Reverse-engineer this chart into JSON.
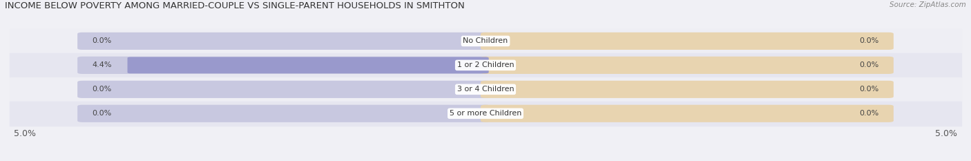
{
  "title": "INCOME BELOW POVERTY AMONG MARRIED-COUPLE VS SINGLE-PARENT HOUSEHOLDS IN SMITHTON",
  "source": "Source: ZipAtlas.com",
  "categories": [
    "No Children",
    "1 or 2 Children",
    "3 or 4 Children",
    "5 or more Children"
  ],
  "married_values": [
    0.0,
    4.4,
    0.0,
    0.0
  ],
  "single_values": [
    0.0,
    0.0,
    0.0,
    0.0
  ],
  "max_val": 5.0,
  "married_color": "#9999cc",
  "single_color": "#f5c98a",
  "married_bg_color": "#c8c8e0",
  "single_bg_color": "#e8d4b0",
  "row_bg_colors": [
    "#eeeef4",
    "#e6e6f0"
  ],
  "label_color": "#555555",
  "title_color": "#333333",
  "figsize": [
    14.06,
    2.33
  ],
  "dpi": 100
}
